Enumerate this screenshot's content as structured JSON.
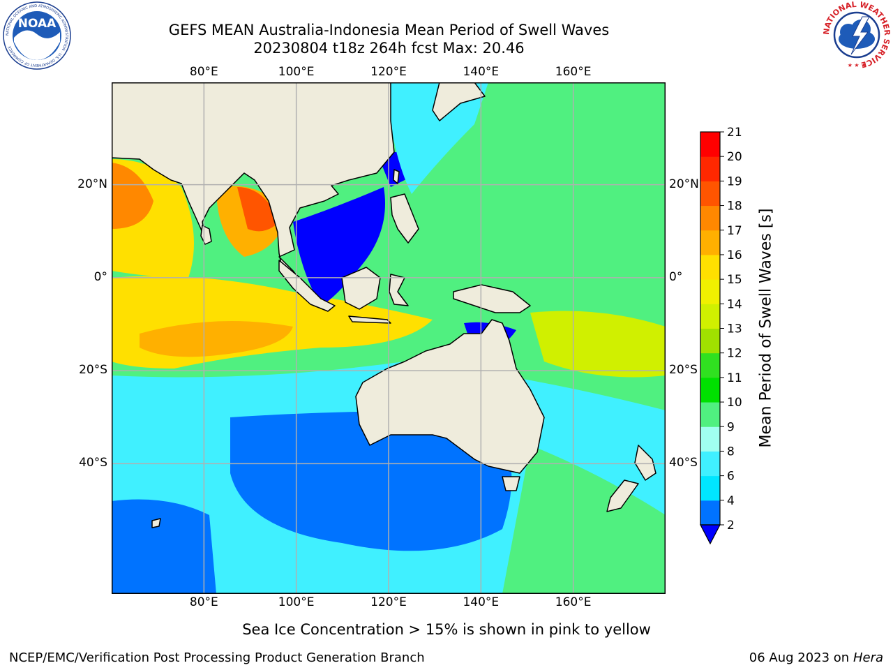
{
  "header": {
    "title_line1": "GEFS MEAN Australia-Indonesia Mean Period of Swell Waves",
    "title_line2": "20230804 t18z 264h fcst   Max: 20.46"
  },
  "logos": {
    "noaa_text": "NOAA",
    "noaa_ring_text": "NATIONAL OCEANIC AND ATMOSPHERIC ADMINISTRATION · U.S. DEPARTMENT OF COMMERCE",
    "nws_ring_text": "NATIONAL WEATHER SERVICE"
  },
  "map": {
    "lon_ticks": [
      "80°E",
      "100°E",
      "120°E",
      "140°E",
      "160°E"
    ],
    "lat_ticks_left": [
      "20°N",
      "0°",
      "20°S",
      "40°S"
    ],
    "lat_ticks_right": [
      "20°N",
      "0°",
      "20°S",
      "40°S"
    ],
    "lon_range": [
      60,
      180
    ],
    "lat_range": [
      -68,
      42
    ],
    "land_color": "#efecdc",
    "grid_color": "#b0b0b0"
  },
  "colorbar": {
    "label": "Mean Period of Swell Waves [s]",
    "tick_labels": [
      "2",
      "4",
      "6",
      "8",
      "9",
      "10",
      "11",
      "12",
      "13",
      "14",
      "15",
      "16",
      "17",
      "18",
      "19",
      "20",
      "21"
    ],
    "colors": [
      "#0073ff",
      "#00e6ff",
      "#40f0ff",
      "#a0fff0",
      "#50f080",
      "#00e000",
      "#30e020",
      "#a0e000",
      "#d0f000",
      "#f0f000",
      "#ffe000",
      "#ffb000",
      "#ff8800",
      "#ff5500",
      "#ff2800",
      "#ff0000"
    ],
    "extend_color": "#0000ff"
  },
  "footer": {
    "note": "Sea Ice Concentration > 15% is shown in pink to yellow",
    "left": "NCEP/EMC/Verification Post Processing Product Generation Branch",
    "date": "06 Aug 2023 on",
    "machine": "Hera"
  }
}
